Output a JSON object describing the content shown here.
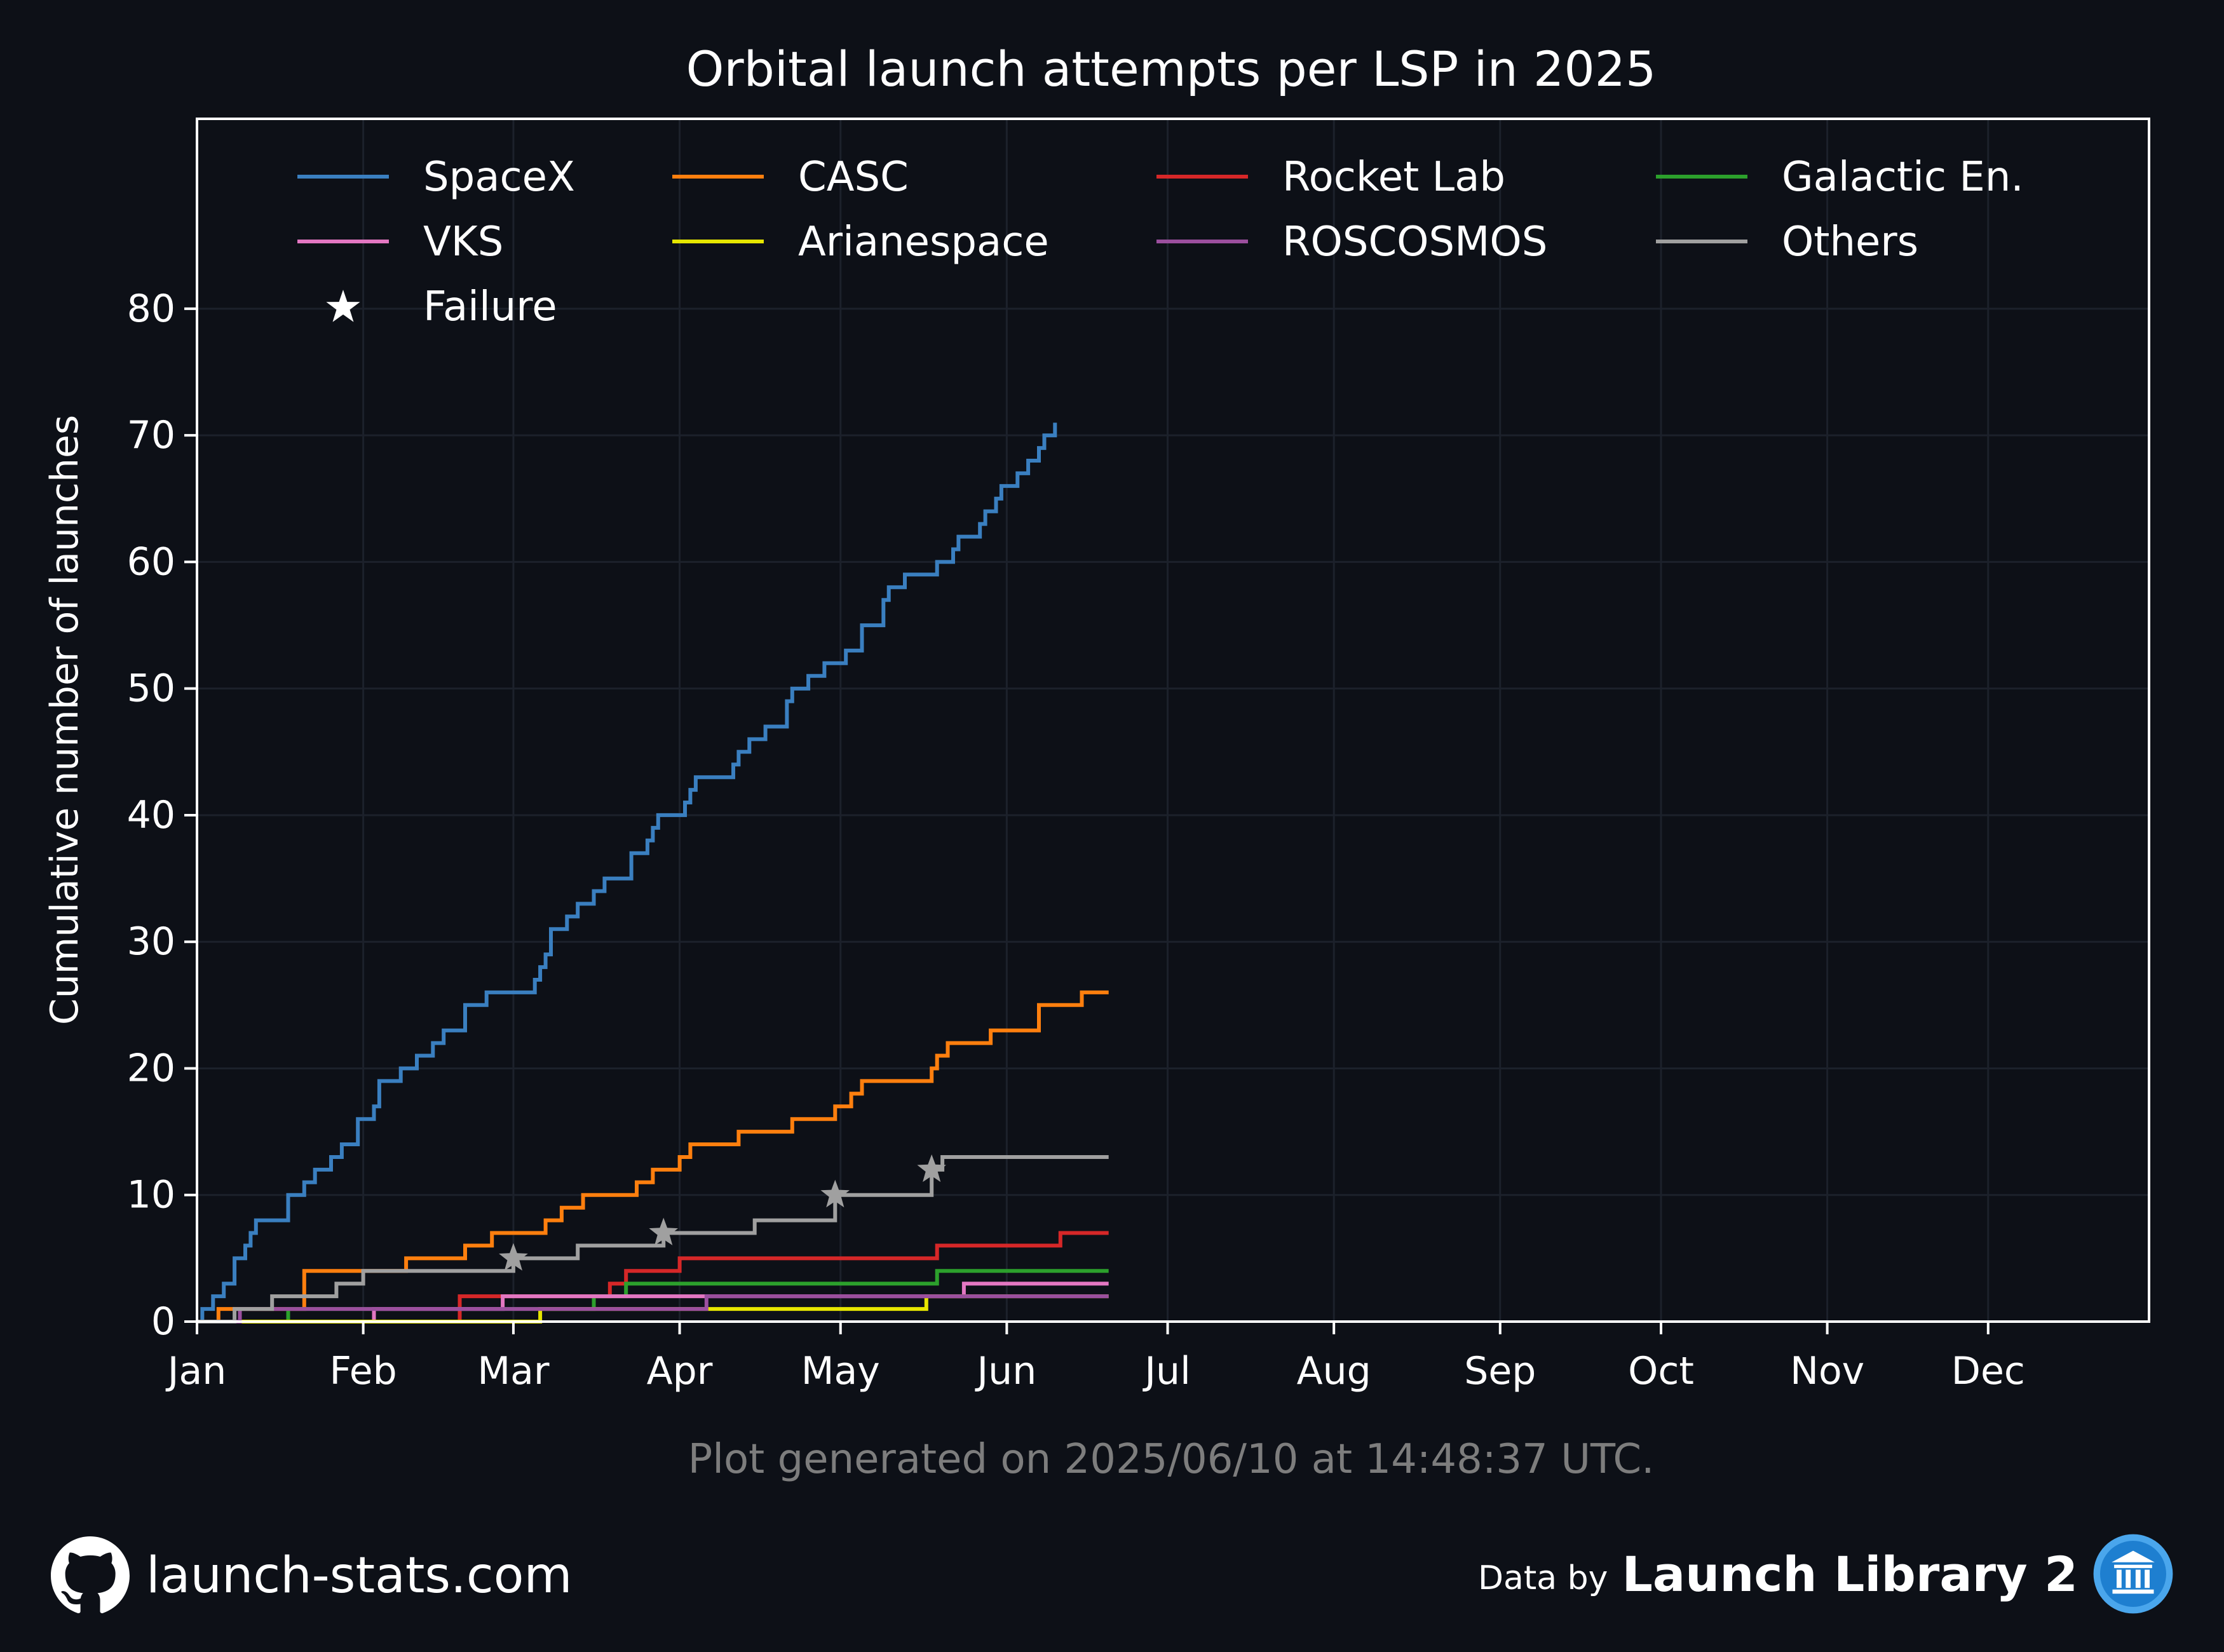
{
  "page": {
    "background": "#0d1017",
    "footnote": "Plot generated on 2025/06/10 at 14:48:37 UTC.",
    "footer_left": {
      "icon": "github-icon",
      "text": "launch-stats.com"
    },
    "footer_right": {
      "prefix": "Data by",
      "brand": "Launch Library 2",
      "icon": "launch-library-icon"
    }
  },
  "chart_data": {
    "type": "line",
    "step": "post",
    "title": "Orbital launch attempts per LSP in 2025",
    "xlabel": "",
    "ylabel": "Cumulative number of launches",
    "x_unit": "date (2025)",
    "xlim": [
      "2025-01-01",
      "2025-12-31"
    ],
    "ylim": [
      0,
      95
    ],
    "yticks": [
      0,
      10,
      20,
      30,
      40,
      50,
      60,
      70,
      80
    ],
    "months": [
      "Jan",
      "Feb",
      "Mar",
      "Apr",
      "May",
      "Jun",
      "Jul",
      "Aug",
      "Sep",
      "Oct",
      "Nov",
      "Dec"
    ],
    "grid": true,
    "legend_position": "top",
    "legend_marker_label": "Failure",
    "series": [
      {
        "name": "SpaceX",
        "color": "#3a7fc0",
        "points": [
          [
            "2025-01-01",
            0
          ],
          [
            "2025-01-02",
            1
          ],
          [
            "2025-01-04",
            2
          ],
          [
            "2025-01-06",
            3
          ],
          [
            "2025-01-08",
            5
          ],
          [
            "2025-01-10",
            6
          ],
          [
            "2025-01-11",
            7
          ],
          [
            "2025-01-12",
            8
          ],
          [
            "2025-01-18",
            10
          ],
          [
            "2025-01-21",
            11
          ],
          [
            "2025-01-23",
            12
          ],
          [
            "2025-01-26",
            13
          ],
          [
            "2025-01-28",
            14
          ],
          [
            "2025-01-31",
            16
          ],
          [
            "2025-02-03",
            17
          ],
          [
            "2025-02-04",
            19
          ],
          [
            "2025-02-08",
            20
          ],
          [
            "2025-02-11",
            21
          ],
          [
            "2025-02-14",
            22
          ],
          [
            "2025-02-16",
            23
          ],
          [
            "2025-02-20",
            25
          ],
          [
            "2025-02-24",
            26
          ],
          [
            "2025-03-05",
            27
          ],
          [
            "2025-03-06",
            28
          ],
          [
            "2025-03-07",
            29
          ],
          [
            "2025-03-08",
            31
          ],
          [
            "2025-03-11",
            32
          ],
          [
            "2025-03-13",
            33
          ],
          [
            "2025-03-16",
            34
          ],
          [
            "2025-03-18",
            35
          ],
          [
            "2025-03-23",
            37
          ],
          [
            "2025-03-26",
            38
          ],
          [
            "2025-03-27",
            39
          ],
          [
            "2025-03-28",
            40
          ],
          [
            "2025-04-02",
            41
          ],
          [
            "2025-04-03",
            42
          ],
          [
            "2025-04-04",
            43
          ],
          [
            "2025-04-11",
            44
          ],
          [
            "2025-04-12",
            45
          ],
          [
            "2025-04-14",
            46
          ],
          [
            "2025-04-17",
            47
          ],
          [
            "2025-04-21",
            49
          ],
          [
            "2025-04-22",
            50
          ],
          [
            "2025-04-25",
            51
          ],
          [
            "2025-04-28",
            52
          ],
          [
            "2025-05-02",
            53
          ],
          [
            "2025-05-05",
            55
          ],
          [
            "2025-05-09",
            57
          ],
          [
            "2025-05-10",
            58
          ],
          [
            "2025-05-13",
            59
          ],
          [
            "2025-05-19",
            60
          ],
          [
            "2025-05-22",
            61
          ],
          [
            "2025-05-23",
            62
          ],
          [
            "2025-05-27",
            63
          ],
          [
            "2025-05-28",
            64
          ],
          [
            "2025-05-30",
            65
          ],
          [
            "2025-05-31",
            66
          ],
          [
            "2025-06-03",
            67
          ],
          [
            "2025-06-05",
            68
          ],
          [
            "2025-06-07",
            69
          ],
          [
            "2025-06-08",
            70
          ],
          [
            "2025-06-10",
            71
          ]
        ]
      },
      {
        "name": "CASC",
        "color": "#ff7f0e",
        "points": [
          [
            "2025-01-01",
            0
          ],
          [
            "2025-01-05",
            1
          ],
          [
            "2025-01-21",
            4
          ],
          [
            "2025-02-09",
            5
          ],
          [
            "2025-02-20",
            6
          ],
          [
            "2025-02-25",
            7
          ],
          [
            "2025-03-07",
            8
          ],
          [
            "2025-03-10",
            9
          ],
          [
            "2025-03-14",
            10
          ],
          [
            "2025-03-24",
            11
          ],
          [
            "2025-03-27",
            12
          ],
          [
            "2025-04-01",
            13
          ],
          [
            "2025-04-03",
            14
          ],
          [
            "2025-04-12",
            15
          ],
          [
            "2025-04-22",
            16
          ],
          [
            "2025-04-30",
            17
          ],
          [
            "2025-05-03",
            18
          ],
          [
            "2025-05-05",
            19
          ],
          [
            "2025-05-18",
            20
          ],
          [
            "2025-05-19",
            21
          ],
          [
            "2025-05-21",
            22
          ],
          [
            "2025-05-29",
            23
          ],
          [
            "2025-06-07",
            25
          ],
          [
            "2025-06-15",
            26
          ],
          [
            "2025-06-20",
            26
          ]
        ]
      },
      {
        "name": "Rocket Lab",
        "color": "#d62728",
        "points": [
          [
            "2025-01-01",
            0
          ],
          [
            "2025-02-19",
            2
          ],
          [
            "2025-03-19",
            3
          ],
          [
            "2025-03-22",
            4
          ],
          [
            "2025-04-01",
            5
          ],
          [
            "2025-05-19",
            6
          ],
          [
            "2025-06-11",
            7
          ],
          [
            "2025-06-20",
            7
          ]
        ]
      },
      {
        "name": "Galactic En.",
        "color": "#2ca02c",
        "points": [
          [
            "2025-01-01",
            0
          ],
          [
            "2025-01-18",
            1
          ],
          [
            "2025-03-16",
            2
          ],
          [
            "2025-03-22",
            3
          ],
          [
            "2025-05-19",
            4
          ],
          [
            "2025-06-20",
            4
          ]
        ]
      },
      {
        "name": "VKS",
        "color": "#e377c2",
        "points": [
          [
            "2025-01-01",
            0
          ],
          [
            "2025-02-03",
            1
          ],
          [
            "2025-02-27",
            2
          ],
          [
            "2025-05-20",
            2
          ],
          [
            "2025-05-24",
            3
          ],
          [
            "2025-06-20",
            3
          ]
        ]
      },
      {
        "name": "Arianespace",
        "color": "#e6e600",
        "points": [
          [
            "2025-01-01",
            0
          ],
          [
            "2025-03-06",
            1
          ],
          [
            "2025-05-17",
            2
          ],
          [
            "2025-06-20",
            2
          ]
        ]
      },
      {
        "name": "ROSCOSMOS",
        "color": "#9b4f9e",
        "points": [
          [
            "2025-01-01",
            0
          ],
          [
            "2025-01-09",
            1
          ],
          [
            "2025-03-15",
            1
          ],
          [
            "2025-04-06",
            2
          ],
          [
            "2025-06-20",
            2
          ]
        ]
      },
      {
        "name": "Others",
        "color": "#a0a0a0",
        "points": [
          [
            "2025-01-01",
            0
          ],
          [
            "2025-01-08",
            1
          ],
          [
            "2025-01-15",
            2
          ],
          [
            "2025-01-27",
            3
          ],
          [
            "2025-02-01",
            4
          ],
          [
            "2025-03-01",
            5
          ],
          [
            "2025-03-13",
            6
          ],
          [
            "2025-03-29",
            7
          ],
          [
            "2025-04-15",
            8
          ],
          [
            "2025-04-30",
            10
          ],
          [
            "2025-05-18",
            12
          ],
          [
            "2025-05-20",
            13
          ],
          [
            "2025-06-20",
            13
          ]
        ]
      }
    ],
    "failures": [
      {
        "series": "Others",
        "date": "2025-03-01",
        "value": 5
      },
      {
        "series": "Others",
        "date": "2025-03-29",
        "value": 7
      },
      {
        "series": "Others",
        "date": "2025-04-30",
        "value": 10
      },
      {
        "series": "Others",
        "date": "2025-05-18",
        "value": 12
      }
    ]
  }
}
